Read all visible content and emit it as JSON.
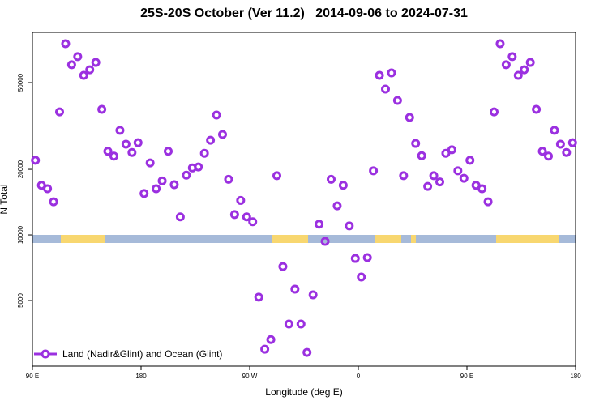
{
  "chart_data": {
    "type": "scatter",
    "title": "25S-20S October (Ver 11.2)   2014-09-06 to 2024-07-31",
    "x_label": "Longitude (deg E)",
    "y_label": "N Total",
    "log_y": true,
    "legend": "bottom-left",
    "xlim": [
      90,
      540
    ],
    "ylim": [
      2500,
      85000
    ],
    "xticks": [
      {
        "value": 90,
        "label": "90 E"
      },
      180,
      {
        "value": 270,
        "label": "90 W"
      },
      {
        "value": 360,
        "label": "0"
      },
      {
        "value": 450,
        "label": "90 E"
      },
      {
        "value": 540,
        "label": "180"
      }
    ],
    "yticks": [
      5000,
      10000,
      20000,
      50000
    ],
    "series": [
      {
        "name": "Land (Nadir&Glint) and Ocean (Glint)",
        "color": "#9b30e0",
        "x": [
          92.5,
          97.5,
          102.5,
          107.5,
          112.5,
          117.5,
          122.5,
          127.5,
          132.5,
          137.5,
          142.5,
          147.5,
          152.5,
          157.5,
          162.5,
          167.5,
          172.5,
          177.5,
          182.5,
          187.5,
          192.5,
          197.5,
          202.5,
          207.5,
          212.5,
          217.5,
          222.5,
          227.5,
          232.5,
          237.5,
          242.5,
          247.5,
          252.5,
          257.5,
          262.5,
          267.5,
          272.5,
          277.5,
          282.5,
          287.5,
          292.5,
          297.5,
          302.5,
          307.5,
          312.5,
          317.5,
          322.5,
          327.5,
          332.5,
          337.5,
          342.5,
          347.5,
          352.5,
          357.5,
          362.5,
          367.5,
          372.5,
          377.5,
          382.5,
          387.5,
          392.5,
          397.5,
          402.5,
          407.5,
          412.5,
          417.5,
          422.5,
          427.5,
          432.5,
          437.5,
          442.5,
          447.5,
          452.5,
          457.5,
          462.5,
          467.5,
          472.5,
          477.5,
          482.5,
          487.5,
          492.5,
          497.5,
          502.5,
          507.5,
          512.5,
          517.5,
          522.5,
          527.5,
          532.5,
          537.5
        ],
        "values": [
          22000,
          16900,
          16300,
          14200,
          36700,
          75400,
          60400,
          65800,
          54000,
          57300,
          61900,
          37700,
          24200,
          23000,
          30200,
          26100,
          23900,
          26500,
          15500,
          21400,
          16300,
          17700,
          24200,
          17000,
          12100,
          18800,
          20300,
          20500,
          23700,
          27200,
          35500,
          28900,
          18000,
          12400,
          14400,
          12100,
          11500,
          5180,
          2990,
          3310,
          18700,
          7160,
          3900,
          5640,
          3900,
          2890,
          5310,
          11200,
          9340,
          18000,
          13600,
          16900,
          11000,
          7800,
          6410,
          7870,
          19700,
          54000,
          46700,
          55400,
          41400,
          18700,
          34600,
          26300,
          23100,
          16700,
          18700,
          17500,
          23700,
          24600,
          19700,
          18200,
          22000,
          16900,
          16300,
          14200,
          36700,
          75400,
          60400,
          65800,
          54000,
          57300,
          61900,
          37700,
          24200,
          23000,
          30200,
          26100,
          23900,
          26500
        ]
      }
    ]
  }
}
